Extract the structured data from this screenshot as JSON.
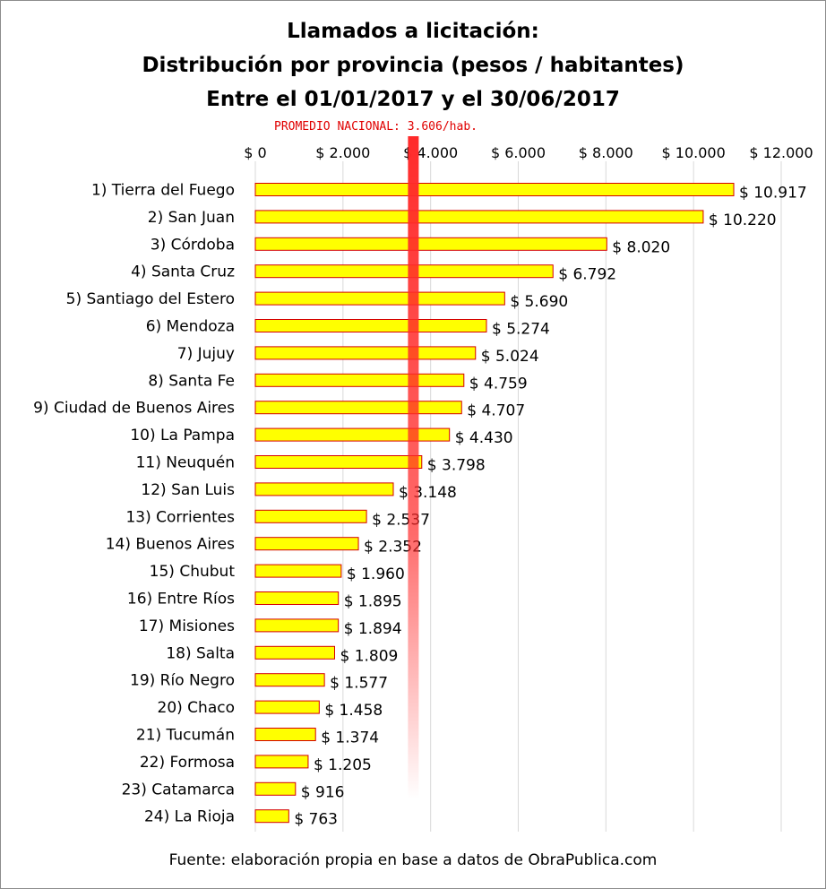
{
  "chart_data": {
    "type": "bar",
    "orientation": "horizontal",
    "title": [
      "Llamados a licitación:",
      "Distribución por provincia (pesos / habitantes)",
      "Entre el 01/01/2017 y el 30/06/2017"
    ],
    "reference_line": {
      "label": "PROMEDIO NACIONAL: 3.606/hab.",
      "value": 3606,
      "color": "#ff2a2a"
    },
    "x_ticks": [
      "$ 0",
      "$ 2.000",
      "$ 4.000",
      "$ 6.000",
      "$ 8.000",
      "$ 10.000",
      "$ 12.000"
    ],
    "x_tick_values": [
      0,
      2000,
      4000,
      6000,
      8000,
      10000,
      12000
    ],
    "xlim": [
      0,
      12000
    ],
    "grid": true,
    "bar_fill": "#ffff00",
    "bar_stroke": "#d40000",
    "categories": [
      "1) Tierra del Fuego",
      "2) San Juan",
      "3) Córdoba",
      "4) Santa Cruz",
      "5) Santiago del Estero",
      "6) Mendoza",
      "7) Jujuy",
      "8) Santa Fe",
      "9) Ciudad de Buenos Aires",
      "10) La Pampa",
      "11) Neuquén",
      "12) San Luis",
      "13) Corrientes",
      "14) Buenos Aires",
      "15) Chubut",
      "16) Entre Ríos",
      "17) Misiones",
      "18) Salta",
      "19) Río Negro",
      "20) Chaco",
      "21) Tucumán",
      "22) Formosa",
      "23) Catamarca",
      "24) La Rioja"
    ],
    "values": [
      10917,
      10220,
      8020,
      6792,
      5690,
      5274,
      5024,
      4759,
      4707,
      4430,
      3798,
      3148,
      2537,
      2352,
      1960,
      1895,
      1894,
      1809,
      1577,
      1458,
      1374,
      1205,
      916,
      763
    ],
    "value_labels": [
      "$ 10.917",
      "$ 10.220",
      "$ 8.020",
      "$ 6.792",
      "$ 5.690",
      "$ 5.274",
      "$ 5.024",
      "$ 4.759",
      "$ 4.707",
      "$ 4.430",
      "$ 3.798",
      "$ 3.148",
      "$ 2.537",
      "$ 2.352",
      "$ 1.960",
      "$ 1.895",
      "$ 1.894",
      "$ 1.809",
      "$ 1.577",
      "$ 1.458",
      "$ 1.374",
      "$ 1.205",
      "$ 916",
      "$ 763"
    ],
    "source": "Fuente: elaboración propia en base a datos de ObraPublica.com"
  }
}
